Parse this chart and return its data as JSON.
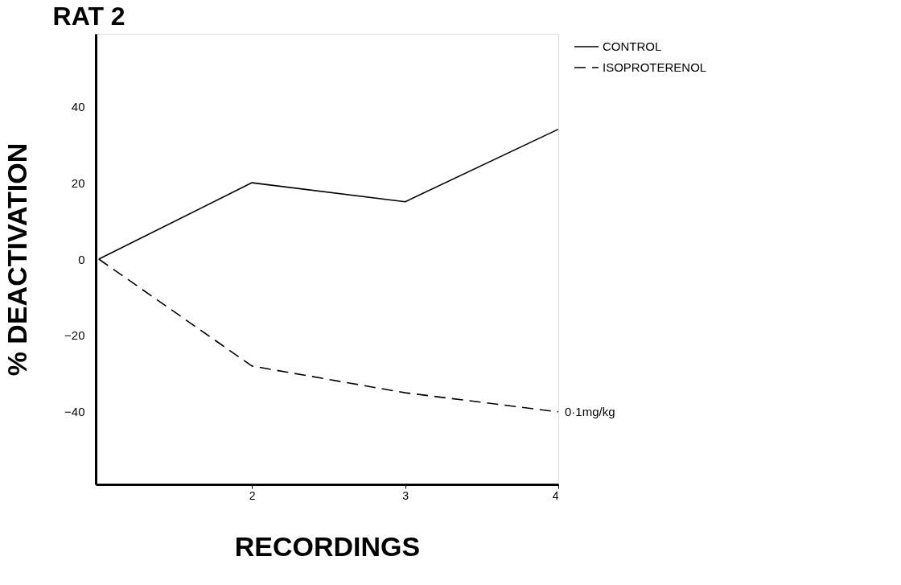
{
  "chart_data": {
    "type": "line",
    "title": "RAT 2",
    "xlabel": "RECORDINGS",
    "ylabel": "% DEACTIVATION",
    "x": [
      1,
      2,
      3,
      4
    ],
    "series": [
      {
        "name": "CONTROL",
        "color": "#000000",
        "line_style": "solid",
        "values": [
          0,
          20,
          15,
          34
        ]
      },
      {
        "name": "ISOPROTERENOL",
        "color": "#000000",
        "line_style": "dashed",
        "values": [
          0,
          -28,
          -35,
          -40
        ]
      }
    ],
    "annotations": [
      {
        "text": "0·1mg/kg",
        "x": 4,
        "y": -40
      }
    ],
    "xlim": [
      0.98,
      4.0
    ],
    "xticks": [
      2,
      3,
      4
    ],
    "ylim": [
      -59,
      59
    ],
    "yticks": [
      -40,
      -20,
      0,
      20,
      40
    ],
    "grid": false,
    "legend": "right",
    "marker": "none"
  }
}
